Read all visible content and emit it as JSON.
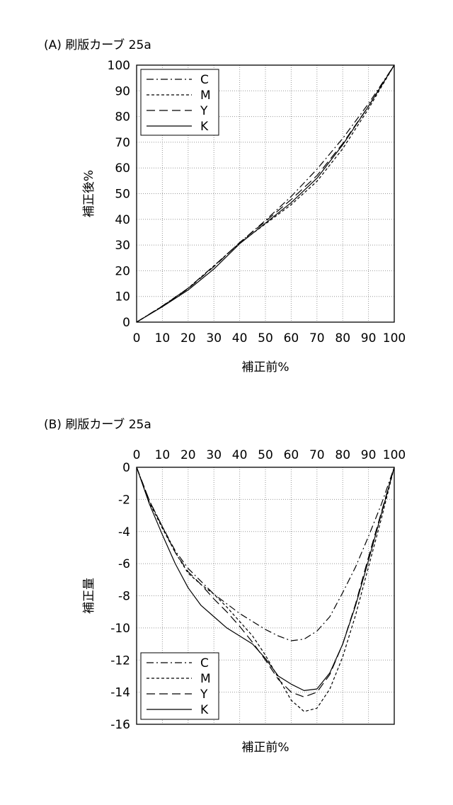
{
  "panels": {
    "a": {
      "title": "(A) 刷版カーブ 25a"
    },
    "b": {
      "title": "(B) 刷版カーブ 25a"
    }
  },
  "chart_data": [
    {
      "type": "line",
      "title": "(A) 刷版カーブ 25a",
      "xlabel": "補正前%",
      "ylabel": "補正後%",
      "xlim": [
        0,
        100
      ],
      "ylim": [
        0,
        100
      ],
      "xticks": [
        "0",
        "10",
        "20",
        "30",
        "40",
        "50",
        "60",
        "70",
        "80",
        "90",
        "100"
      ],
      "yticks": [
        "0",
        "10",
        "20",
        "30",
        "40",
        "50",
        "60",
        "70",
        "80",
        "90",
        "100"
      ],
      "grid": true,
      "legend": "top-left",
      "x": [
        0,
        10,
        20,
        30,
        40,
        50,
        60,
        70,
        80,
        90,
        100
      ],
      "series": [
        {
          "name": "C",
          "style": "dash-dot",
          "values": [
            0,
            6.3,
            13.2,
            21.9,
            30.9,
            39.6,
            48.9,
            59.5,
            71.5,
            85,
            100
          ]
        },
        {
          "name": "M",
          "style": "short-dash",
          "values": [
            0,
            6.2,
            13.2,
            21.9,
            30.8,
            38.2,
            45.7,
            54.8,
            67.5,
            83,
            100
          ]
        },
        {
          "name": "Y",
          "style": "long-dash",
          "values": [
            0,
            6.2,
            13,
            21.6,
            31,
            39.2,
            47.7,
            57,
            69.5,
            84,
            100
          ]
        },
        {
          "name": "K",
          "style": "solid",
          "values": [
            0,
            6,
            12.5,
            20.7,
            30.5,
            38.5,
            46.5,
            56,
            69,
            84,
            100
          ]
        }
      ]
    },
    {
      "type": "line",
      "title": "(B) 刷版カーブ 25a",
      "xlabel": "補正前%",
      "ylabel": "補正量",
      "xlim": [
        0,
        100
      ],
      "ylim": [
        -16,
        0
      ],
      "xticks": [
        "0",
        "10",
        "20",
        "30",
        "40",
        "50",
        "60",
        "70",
        "80",
        "90",
        "100"
      ],
      "yticks": [
        "0",
        "-2",
        "-4",
        "-6",
        "-8",
        "-10",
        "-12",
        "-14",
        "-16"
      ],
      "x_axis_position": "top",
      "grid": true,
      "legend": "bottom-left",
      "x": [
        0,
        5,
        10,
        15,
        20,
        25,
        30,
        35,
        40,
        45,
        50,
        55,
        60,
        65,
        70,
        75,
        80,
        85,
        90,
        95,
        100
      ],
      "series": [
        {
          "name": "C",
          "style": "dash-dot",
          "values": [
            0,
            -2.1,
            -3.7,
            -5.2,
            -6.3,
            -7.1,
            -7.9,
            -8.5,
            -9.1,
            -9.6,
            -10.1,
            -10.5,
            -10.8,
            -10.7,
            -10.2,
            -9.3,
            -7.8,
            -6.2,
            -4.3,
            -2.3,
            0
          ]
        },
        {
          "name": "M",
          "style": "short-dash",
          "values": [
            0,
            -2.2,
            -3.8,
            -5.3,
            -6.6,
            -7.3,
            -7.9,
            -8.7,
            -9.6,
            -10.5,
            -11.7,
            -13.1,
            -14.5,
            -15.2,
            -15,
            -13.8,
            -11.8,
            -9.2,
            -6.2,
            -3.2,
            0
          ]
        },
        {
          "name": "Y",
          "style": "long-dash",
          "values": [
            0,
            -2.1,
            -3.7,
            -5.3,
            -6.5,
            -7.3,
            -8.2,
            -9,
            -9.9,
            -10.9,
            -12,
            -13.2,
            -14,
            -14.3,
            -14,
            -12.9,
            -11,
            -8.5,
            -5.6,
            -2.8,
            0
          ]
        },
        {
          "name": "K",
          "style": "solid",
          "values": [
            0,
            -2.3,
            -4.2,
            -6,
            -7.5,
            -8.6,
            -9.3,
            -10,
            -10.5,
            -11,
            -11.9,
            -13,
            -13.5,
            -13.9,
            -13.8,
            -12.8,
            -11,
            -8.6,
            -5.8,
            -2.9,
            0
          ]
        }
      ]
    }
  ]
}
